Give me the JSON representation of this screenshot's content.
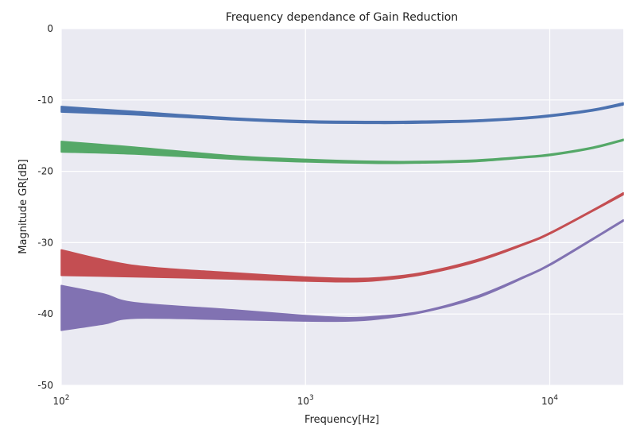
{
  "chart_data": {
    "type": "area",
    "title": "Frequency dependance of Gain Reduction",
    "xlabel": "Frequency[Hz]",
    "ylabel": "Magnitude GR[dB]",
    "xscale": "log",
    "xlim": [
      100,
      20000
    ],
    "ylim": [
      -50,
      0
    ],
    "grid": true,
    "background": "#EAEAF2",
    "x_ticks": [
      {
        "value": 100,
        "base": "10",
        "exp": "2"
      },
      {
        "value": 1000,
        "base": "10",
        "exp": "3"
      },
      {
        "value": 10000,
        "base": "10",
        "exp": "4"
      }
    ],
    "y_ticks": [
      0,
      -10,
      -20,
      -30,
      -40,
      -50
    ],
    "series": [
      {
        "color": "#4C72B0",
        "x": [
          100,
          200,
          500,
          1000,
          2000,
          3000,
          5000,
          8000,
          10000,
          15000,
          20000
        ],
        "upper": [
          -10.9,
          -11.6,
          -12.5,
          -12.9,
          -13.0,
          -12.95,
          -12.8,
          -12.4,
          -12.1,
          -11.3,
          -10.4
        ],
        "lower": [
          -11.7,
          -12.1,
          -12.8,
          -13.2,
          -13.3,
          -13.25,
          -13.05,
          -12.65,
          -12.35,
          -11.55,
          -10.7
        ]
      },
      {
        "color": "#55A868",
        "x": [
          100,
          200,
          500,
          1000,
          2000,
          3000,
          5000,
          8000,
          10000,
          15000,
          20000
        ],
        "upper": [
          -15.8,
          -16.6,
          -17.8,
          -18.3,
          -18.6,
          -18.6,
          -18.4,
          -17.9,
          -17.6,
          -16.6,
          -15.5
        ],
        "lower": [
          -17.3,
          -17.6,
          -18.3,
          -18.7,
          -18.9,
          -18.85,
          -18.65,
          -18.1,
          -17.8,
          -16.8,
          -15.7
        ]
      },
      {
        "color": "#C44E52",
        "x": [
          100,
          200,
          500,
          1000,
          1500,
          2000,
          3000,
          5000,
          8000,
          10000,
          15000,
          20000
        ],
        "upper": [
          -31.0,
          -33.2,
          -34.2,
          -34.8,
          -35.0,
          -34.9,
          -34.2,
          -32.4,
          -30.0,
          -28.6,
          -25.4,
          -23.0
        ],
        "lower": [
          -34.6,
          -34.8,
          -35.1,
          -35.4,
          -35.5,
          -35.3,
          -34.5,
          -32.7,
          -30.2,
          -28.8,
          -25.6,
          -23.3
        ]
      },
      {
        "color": "#8172B2",
        "x": [
          100,
          150,
          200,
          500,
          1000,
          1500,
          2000,
          3000,
          5000,
          8000,
          10000,
          15000,
          20000
        ],
        "upper": [
          -36.0,
          -37.2,
          -38.4,
          -39.4,
          -40.2,
          -40.5,
          -40.3,
          -39.6,
          -37.5,
          -34.6,
          -33.0,
          -29.4,
          -26.8
        ],
        "lower": [
          -42.3,
          -41.4,
          -40.6,
          -40.8,
          -41.0,
          -41.0,
          -40.7,
          -39.8,
          -37.8,
          -34.8,
          -33.2,
          -29.6,
          -27.0
        ]
      }
    ]
  }
}
